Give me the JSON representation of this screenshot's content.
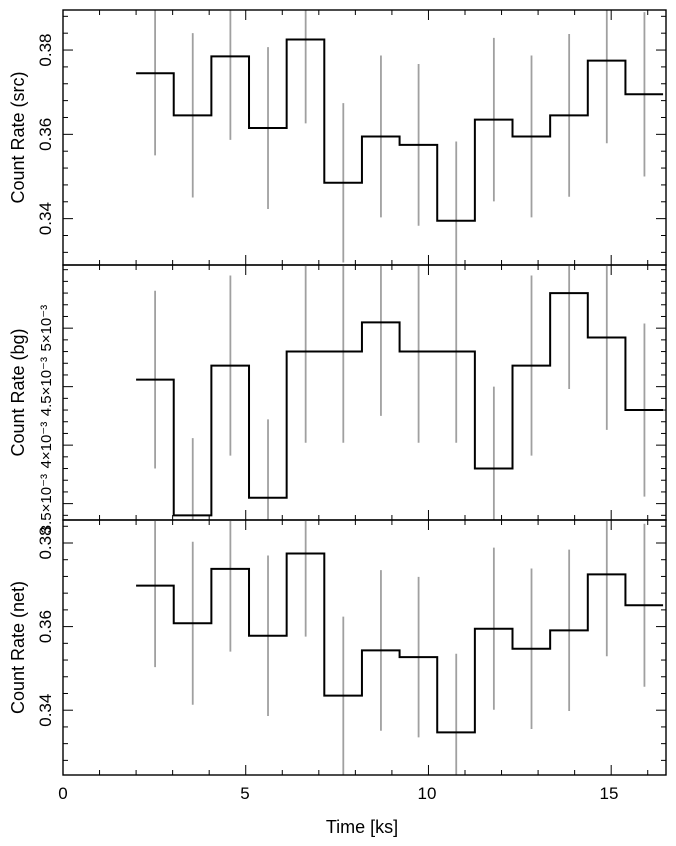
{
  "figure": {
    "xlabel": "Time [ks]",
    "x_tick_labels": [
      "0",
      "5",
      "10",
      "15"
    ]
  },
  "chart_data": [
    {
      "type": "line",
      "step": true,
      "panel": "src",
      "ylabel": "Count Rate (src)",
      "xlim": [
        0,
        16.5
      ],
      "ylim": [
        0.329,
        0.3895
      ],
      "y_ticks": [
        0.34,
        0.36,
        0.38
      ],
      "y_tick_labels": [
        "0.34",
        "0.36",
        "0.38"
      ],
      "bin_edges": [
        2.0,
        3.03,
        4.06,
        5.09,
        6.12,
        7.15,
        8.18,
        9.21,
        10.24,
        11.27,
        12.3,
        13.33,
        14.36,
        15.39,
        16.42
      ],
      "x_centers": [
        2.52,
        3.55,
        4.58,
        5.61,
        6.64,
        7.67,
        8.7,
        9.73,
        10.76,
        11.79,
        12.82,
        13.85,
        14.88,
        15.91
      ],
      "values": [
        0.3745,
        0.3645,
        0.3785,
        0.3615,
        0.3825,
        0.3485,
        0.3595,
        0.3575,
        0.3395,
        0.3635,
        0.3595,
        0.3645,
        0.3775,
        0.3695
      ],
      "errors": [
        0.0195,
        0.0195,
        0.0198,
        0.0192,
        0.0199,
        0.0189,
        0.0192,
        0.0192,
        0.0188,
        0.0194,
        0.0192,
        0.0193,
        0.0196,
        0.0195
      ]
    },
    {
      "type": "line",
      "step": true,
      "panel": "bg",
      "ylabel": "Count Rate (bg)",
      "xlim": [
        0,
        16.5
      ],
      "ylim": [
        0.00336,
        0.00554
      ],
      "y_ticks": [
        0.0035,
        0.004,
        0.0045,
        0.005
      ],
      "y_tick_labels": [
        "3.5×10⁻³",
        "4×10⁻³",
        "4.5×10⁻³",
        "5×10⁻³"
      ],
      "bin_edges": [
        2.0,
        3.03,
        4.06,
        5.09,
        6.12,
        7.15,
        8.18,
        9.21,
        10.24,
        11.27,
        12.3,
        13.33,
        14.36,
        15.39,
        16.42
      ],
      "x_centers": [
        2.52,
        3.55,
        4.58,
        5.61,
        6.64,
        7.67,
        8.7,
        9.73,
        10.76,
        11.79,
        12.82,
        13.85,
        14.88,
        15.91
      ],
      "values": [
        0.00456,
        0.0034,
        0.00468,
        0.00355,
        0.0048,
        0.0048,
        0.00505,
        0.0048,
        0.0048,
        0.0038,
        0.00468,
        0.0053,
        0.00492,
        0.0043
      ],
      "errors": [
        0.00076,
        0.00066,
        0.00077,
        0.00067,
        0.00078,
        0.00078,
        0.0008,
        0.00078,
        0.00078,
        0.0007,
        0.00077,
        0.00082,
        0.00079,
        0.00074
      ]
    },
    {
      "type": "line",
      "step": true,
      "panel": "net",
      "ylabel": "Count Rate (net)",
      "xlim": [
        0,
        16.5
      ],
      "ylim": [
        0.3245,
        0.3855
      ],
      "y_ticks": [
        0.34,
        0.36,
        0.38
      ],
      "y_tick_labels": [
        "0.34",
        "0.36",
        "0.38"
      ],
      "bin_edges": [
        2.0,
        3.03,
        4.06,
        5.09,
        6.12,
        7.15,
        8.18,
        9.21,
        10.24,
        11.27,
        12.3,
        13.33,
        14.36,
        15.39,
        16.42
      ],
      "x_centers": [
        2.52,
        3.55,
        4.58,
        5.61,
        6.64,
        7.67,
        8.7,
        9.73,
        10.76,
        11.79,
        12.82,
        13.85,
        14.88,
        15.91
      ],
      "values": [
        0.3698,
        0.3608,
        0.3738,
        0.3578,
        0.3775,
        0.3435,
        0.3543,
        0.3527,
        0.3347,
        0.3595,
        0.3547,
        0.3591,
        0.3725,
        0.3651
      ],
      "errors": [
        0.0195,
        0.0195,
        0.0198,
        0.0192,
        0.0199,
        0.0189,
        0.0192,
        0.0192,
        0.0188,
        0.0194,
        0.0192,
        0.0193,
        0.0196,
        0.0195
      ]
    }
  ],
  "colors": {
    "step_line": "#000000",
    "error_bar": "#a0a0a0",
    "axes": "#000000",
    "background": "#ffffff"
  }
}
